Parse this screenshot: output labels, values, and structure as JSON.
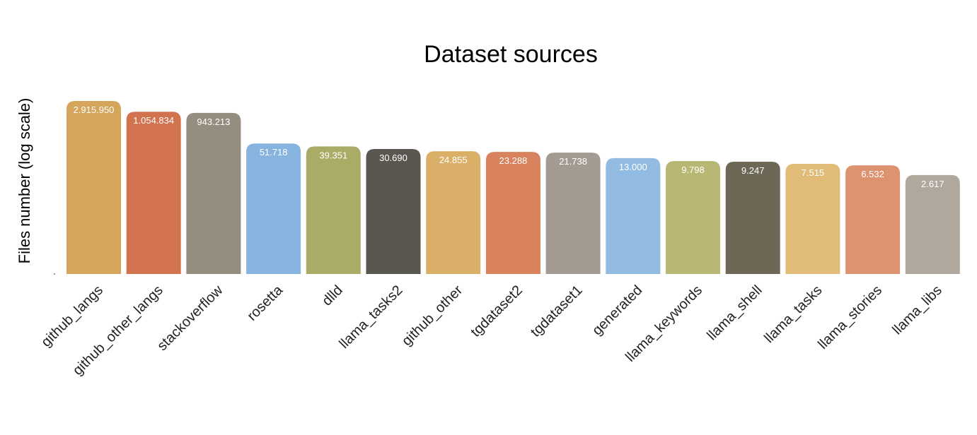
{
  "chart_data": {
    "type": "bar",
    "title": "Dataset sources",
    "xlabel": "",
    "ylabel": "Files number (log scale)",
    "y_scale": "log",
    "grid": false,
    "legend": "none",
    "categories": [
      "github_langs",
      "github_other_langs",
      "stackoverflow",
      "rosetta",
      "dlld",
      "llama_tasks2",
      "github_other",
      "tgdataset2",
      "tgdataset1",
      "generated",
      "llama_keywords",
      "llama_shell",
      "llama_tasks",
      "llama_stories",
      "llama_libs"
    ],
    "values": [
      2915950,
      1054834,
      943213,
      51718,
      39351,
      30690,
      24855,
      23288,
      21738,
      13000,
      9798,
      9247,
      7515,
      6532,
      2617
    ],
    "data_labels": [
      "2.915.950",
      "1.054.834",
      "943.213",
      "51.718",
      "39.351",
      "30.690",
      "24.855",
      "23.288",
      "21.738",
      "13.000",
      "9.798",
      "9.247",
      "7.515",
      "6.532",
      "2.617"
    ],
    "colors": [
      "#D4A55A",
      "#D2734F",
      "#958D80",
      "#86B4DF",
      "#ABAB68",
      "#5A5750",
      "#DAB069",
      "#D8825E",
      "#A39B91",
      "#92BBE2",
      "#B8B874",
      "#6D6756",
      "#E0BC78",
      "#DE9370",
      "#B1A89D"
    ]
  }
}
